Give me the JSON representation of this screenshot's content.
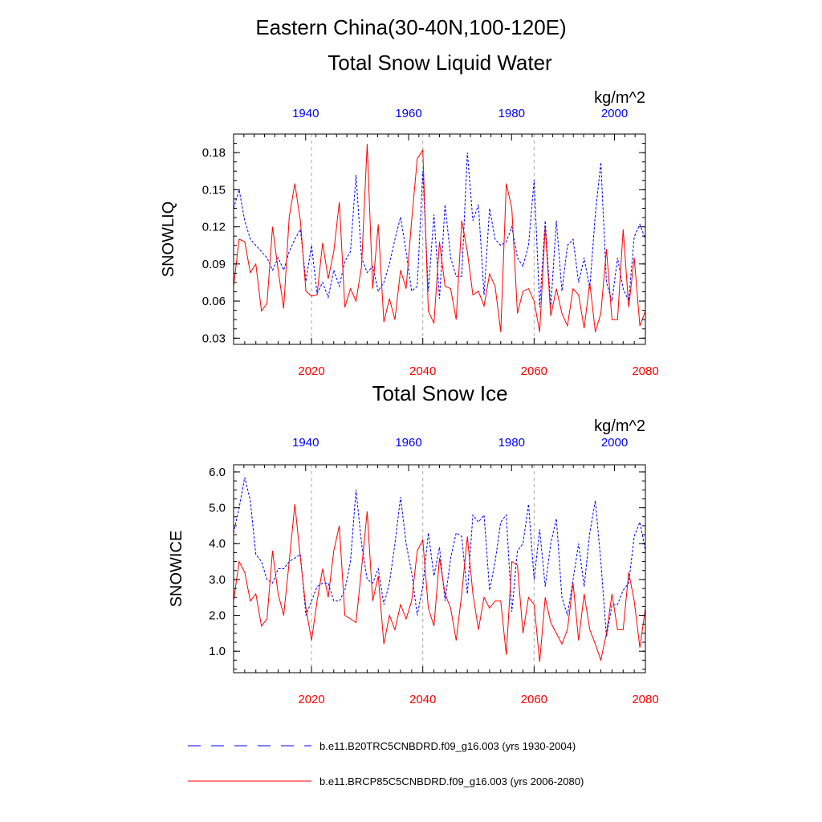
{
  "title": "Eastern China(30-40N,100-120E)",
  "colors": {
    "series_1930_2004": "#0000ff",
    "series_2006_2080": "#ff0000",
    "axis": "#000000",
    "grid": "#aaaaaa"
  },
  "legend": {
    "entries": [
      {
        "label": "b.e11.B20TRC5CNBDRD.f09_g16.003 (yrs 1930-2004)",
        "style": "dashed",
        "color": "#0000ff"
      },
      {
        "label": "b.e11.BRCP85C5CNBDRD.f09_g16.003 (yrs 2006-2080)",
        "style": "solid",
        "color": "#ff0000"
      }
    ]
  },
  "chart_data": [
    {
      "type": "line",
      "title": "Total Snow Liquid Water",
      "units": "kg/m^2",
      "ylabel": "SNOWLIQ",
      "ylim": [
        0.025,
        0.195
      ],
      "yticks": [
        0.03,
        0.06,
        0.09,
        0.12,
        0.15,
        0.18
      ],
      "yticklabels": [
        "0.03",
        "0.06",
        "0.09",
        "0.12",
        "0.15",
        "0.18"
      ],
      "x_bottom": {
        "range": [
          2006,
          2080
        ],
        "ticks": [
          2020,
          2040,
          2060,
          2080
        ],
        "labels": [
          "2020",
          "2040",
          "2060",
          "2080"
        ]
      },
      "x_top": {
        "range": [
          1926,
          2006
        ],
        "ticks": [
          1940,
          1960,
          1980,
          2000
        ],
        "labels": [
          "1940",
          "1960",
          "1980",
          "2000"
        ]
      },
      "gridlines_x": [
        2020,
        2040,
        2060
      ],
      "series": [
        {
          "name": "b.e11.B20TRC5CNBDRD.f09_g16.003 (yrs 1930-2004)",
          "style": "dashed",
          "x_axis": "bottom",
          "x_start": 2006,
          "values": [
            0.135,
            0.15,
            0.125,
            0.11,
            0.105,
            0.1,
            0.095,
            0.085,
            0.095,
            0.085,
            0.1,
            0.11,
            0.118,
            0.076,
            0.105,
            0.066,
            0.075,
            0.063,
            0.085,
            0.072,
            0.092,
            0.1,
            0.162,
            0.095,
            0.083,
            0.088,
            0.068,
            0.075,
            0.09,
            0.11,
            0.128,
            0.1,
            0.068,
            0.072,
            0.165,
            0.068,
            0.13,
            0.062,
            0.138,
            0.095,
            0.08,
            0.08,
            0.18,
            0.125,
            0.138,
            0.065,
            0.135,
            0.11,
            0.105,
            0.108,
            0.12,
            0.095,
            0.088,
            0.105,
            0.158,
            0.055,
            0.125,
            0.055,
            0.125,
            0.068,
            0.105,
            0.11,
            0.075,
            0.095,
            0.07,
            0.13,
            0.172,
            0.075,
            0.06,
            0.095,
            0.07,
            0.06,
            0.112,
            0.122,
            0.11
          ]
        },
        {
          "name": "b.e11.BRCP85C5CNBDRD.f09_g16.003 (yrs 2006-2080)",
          "style": "solid",
          "x_axis": "bottom",
          "x_start": 2006,
          "values": [
            0.072,
            0.11,
            0.108,
            0.083,
            0.09,
            0.052,
            0.058,
            0.12,
            0.085,
            0.054,
            0.128,
            0.155,
            0.125,
            0.068,
            0.064,
            0.065,
            0.107,
            0.078,
            0.1,
            0.14,
            0.055,
            0.07,
            0.06,
            0.088,
            0.187,
            0.07,
            0.122,
            0.043,
            0.062,
            0.045,
            0.085,
            0.07,
            0.125,
            0.175,
            0.182,
            0.052,
            0.042,
            0.108,
            0.072,
            0.07,
            0.045,
            0.125,
            0.1,
            0.065,
            0.068,
            0.056,
            0.082,
            0.072,
            0.035,
            0.155,
            0.135,
            0.05,
            0.068,
            0.07,
            0.06,
            0.035,
            0.12,
            0.048,
            0.07,
            0.05,
            0.04,
            0.07,
            0.065,
            0.038,
            0.075,
            0.035,
            0.05,
            0.102,
            0.045,
            0.045,
            0.118,
            0.055,
            0.095,
            0.04,
            0.052
          ]
        }
      ]
    },
    {
      "type": "line",
      "title": "Total Snow Ice",
      "units": "kg/m^2",
      "ylabel": "SNOWICE",
      "ylim": [
        0.4,
        6.2
      ],
      "yticks": [
        1.0,
        2.0,
        3.0,
        4.0,
        5.0,
        6.0
      ],
      "yticklabels": [
        "1.0",
        "2.0",
        "3.0",
        "4.0",
        "5.0",
        "6.0"
      ],
      "x_bottom": {
        "range": [
          2006,
          2080
        ],
        "ticks": [
          2020,
          2040,
          2060,
          2080
        ],
        "labels": [
          "2020",
          "2040",
          "2060",
          "2080"
        ]
      },
      "x_top": {
        "range": [
          1926,
          2006
        ],
        "ticks": [
          1940,
          1960,
          1980,
          2000
        ],
        "labels": [
          "1940",
          "1960",
          "1980",
          "2000"
        ]
      },
      "gridlines_x": [
        2020,
        2040,
        2060
      ],
      "series": [
        {
          "name": "b.e11.B20TRC5CNBDRD.f09_g16.003 (yrs 1930-2004)",
          "style": "dashed",
          "x_axis": "bottom",
          "x_start": 2006,
          "values": [
            4.3,
            5.0,
            5.85,
            5.2,
            3.7,
            3.5,
            3.0,
            2.9,
            3.3,
            3.3,
            3.5,
            3.6,
            3.7,
            2.0,
            2.4,
            2.8,
            2.9,
            2.9,
            2.4,
            2.4,
            2.7,
            3.5,
            5.5,
            4.0,
            3.0,
            2.9,
            3.3,
            2.3,
            2.9,
            4.0,
            5.3,
            4.0,
            3.2,
            2.0,
            2.8,
            4.3,
            3.1,
            3.9,
            2.4,
            3.6,
            4.3,
            4.2,
            2.6,
            4.8,
            4.6,
            4.8,
            2.7,
            3.5,
            4.6,
            4.8,
            2.1,
            3.8,
            4.0,
            5.1,
            3.0,
            4.4,
            2.8,
            4.0,
            4.7,
            2.5,
            2.0,
            3.0,
            4.0,
            2.8,
            4.3,
            5.2,
            3.5,
            1.4,
            2.3,
            2.3,
            2.7,
            2.9,
            4.2,
            4.6,
            3.8
          ]
        },
        {
          "name": "b.e11.BRCP85C5CNBDRD.f09_g16.003 (yrs 2006-2080)",
          "style": "solid",
          "x_axis": "bottom",
          "x_start": 2006,
          "values": [
            2.4,
            3.5,
            3.2,
            2.4,
            2.6,
            1.7,
            1.9,
            3.8,
            2.6,
            2.0,
            3.5,
            5.1,
            3.6,
            2.2,
            1.3,
            2.4,
            3.3,
            2.5,
            3.8,
            4.5,
            2.0,
            1.9,
            1.8,
            3.3,
            4.9,
            2.4,
            3.1,
            1.2,
            2.0,
            1.6,
            2.3,
            1.9,
            2.4,
            3.8,
            4.1,
            2.2,
            1.7,
            3.6,
            2.6,
            2.2,
            1.3,
            2.6,
            4.2,
            2.6,
            1.6,
            2.5,
            2.2,
            2.4,
            2.4,
            0.9,
            3.5,
            3.4,
            1.5,
            2.5,
            2.3,
            0.7,
            2.5,
            1.8,
            1.5,
            1.2,
            1.6,
            2.9,
            1.3,
            2.6,
            1.6,
            1.2,
            0.75,
            1.5,
            2.6,
            1.6,
            1.6,
            3.2,
            2.4,
            1.1,
            2.2
          ]
        }
      ]
    }
  ]
}
